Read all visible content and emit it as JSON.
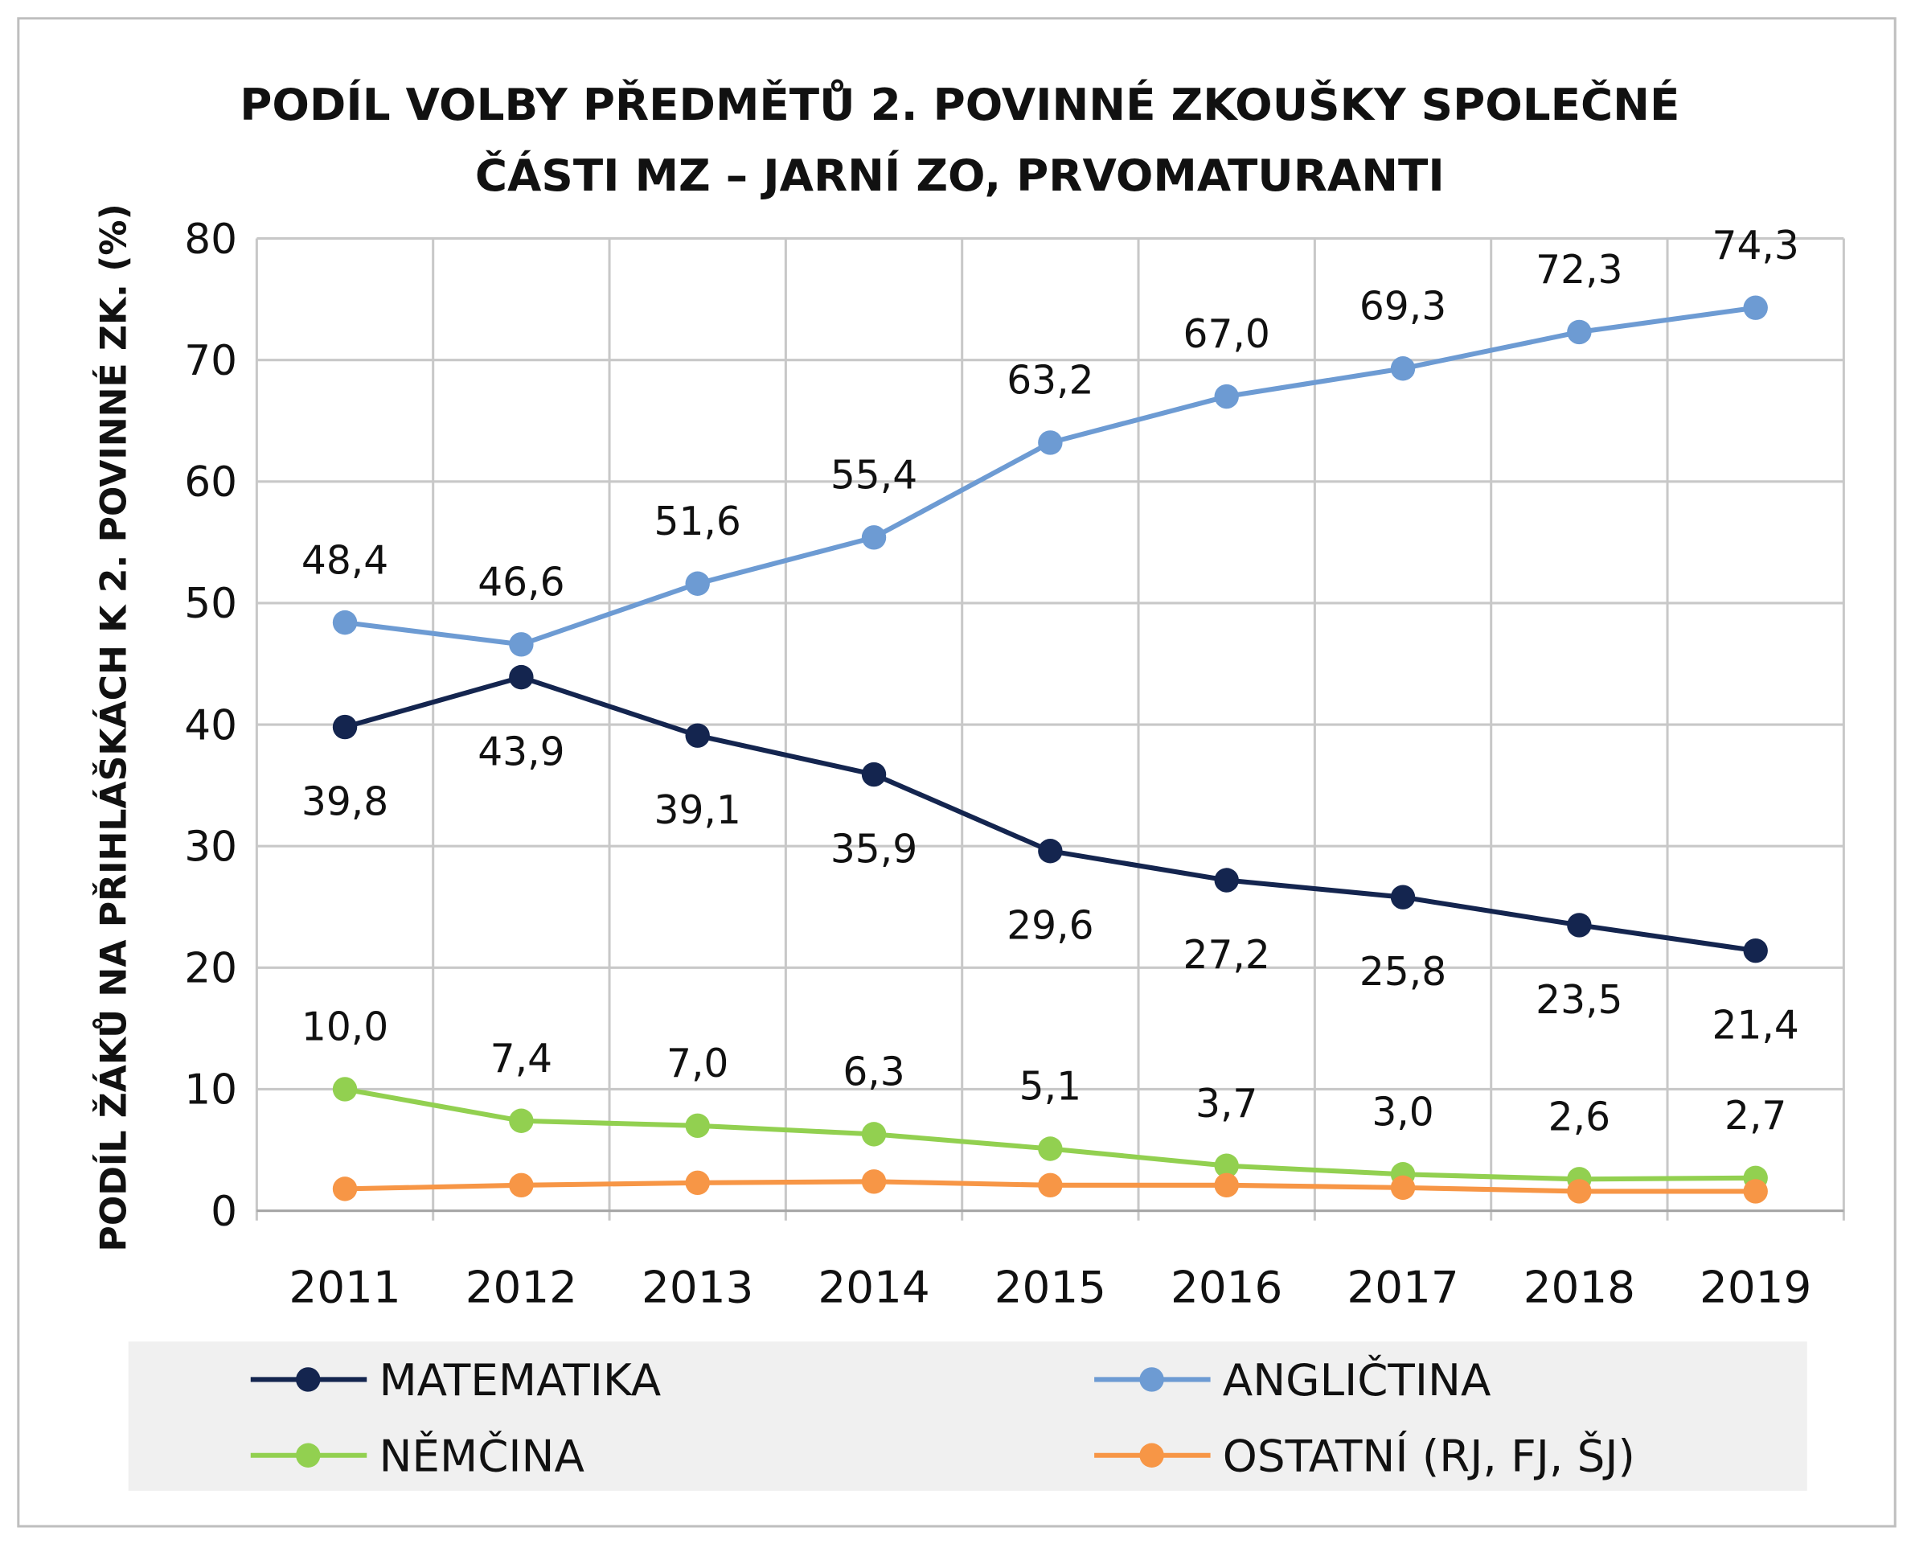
{
  "chart_data": {
    "type": "line",
    "title": [
      "PODÍL VOLBY PŘEDMĚTŮ 2. POVINNÉ ZKOUŠKY SPOLEČNÉ",
      "ČÁSTI MZ – JARNÍ ZO, PRVOMATURANTI"
    ],
    "y_label": "PODÍL ŽÁKŮ NA PŘIHLÁŠKÁCH K 2. POVINNÉ ZK. (%)",
    "categories": [
      "2011",
      "2012",
      "2013",
      "2014",
      "2015",
      "2016",
      "2017",
      "2018",
      "2019"
    ],
    "ylim": [
      0,
      80
    ],
    "yticks": [
      0,
      10,
      20,
      30,
      40,
      50,
      60,
      70,
      80
    ],
    "grid": true,
    "legend": "bottom",
    "series": [
      {
        "name": "MATEMATIKA",
        "color": "#14254f",
        "label_side": "below",
        "values": [
          39.8,
          43.9,
          39.1,
          35.9,
          29.6,
          27.2,
          25.8,
          23.5,
          21.4
        ],
        "value_labels": [
          "39,8",
          "43,9",
          "39,1",
          "35,9",
          "29,6",
          "27,2",
          "25,8",
          "23,5",
          "21,4"
        ]
      },
      {
        "name": "ANGLIČTINA",
        "color": "#6d9bd3",
        "label_side": "above",
        "values": [
          48.4,
          46.6,
          51.6,
          55.4,
          63.2,
          67.0,
          69.3,
          72.3,
          74.3
        ],
        "value_labels": [
          "48,4",
          "46,6",
          "51,6",
          "55,4",
          "63,2",
          "67,0",
          "69,3",
          "72,3",
          "74,3"
        ]
      },
      {
        "name": "NĚMČINA",
        "color": "#92d050",
        "label_side": "above",
        "values": [
          10.0,
          7.4,
          7.0,
          6.3,
          5.1,
          3.7,
          3.0,
          2.6,
          2.7
        ],
        "value_labels": [
          "10,0",
          "7,4",
          "7,0",
          "6,3",
          "5,1",
          "3,7",
          "3,0",
          "2,6",
          "2,7"
        ]
      },
      {
        "name": "OSTATNÍ (RJ, FJ, ŠJ)",
        "color": "#f79646",
        "values": [
          1.8,
          2.1,
          2.3,
          2.4,
          2.1,
          2.1,
          1.9,
          1.6,
          1.6
        ]
      }
    ]
  }
}
